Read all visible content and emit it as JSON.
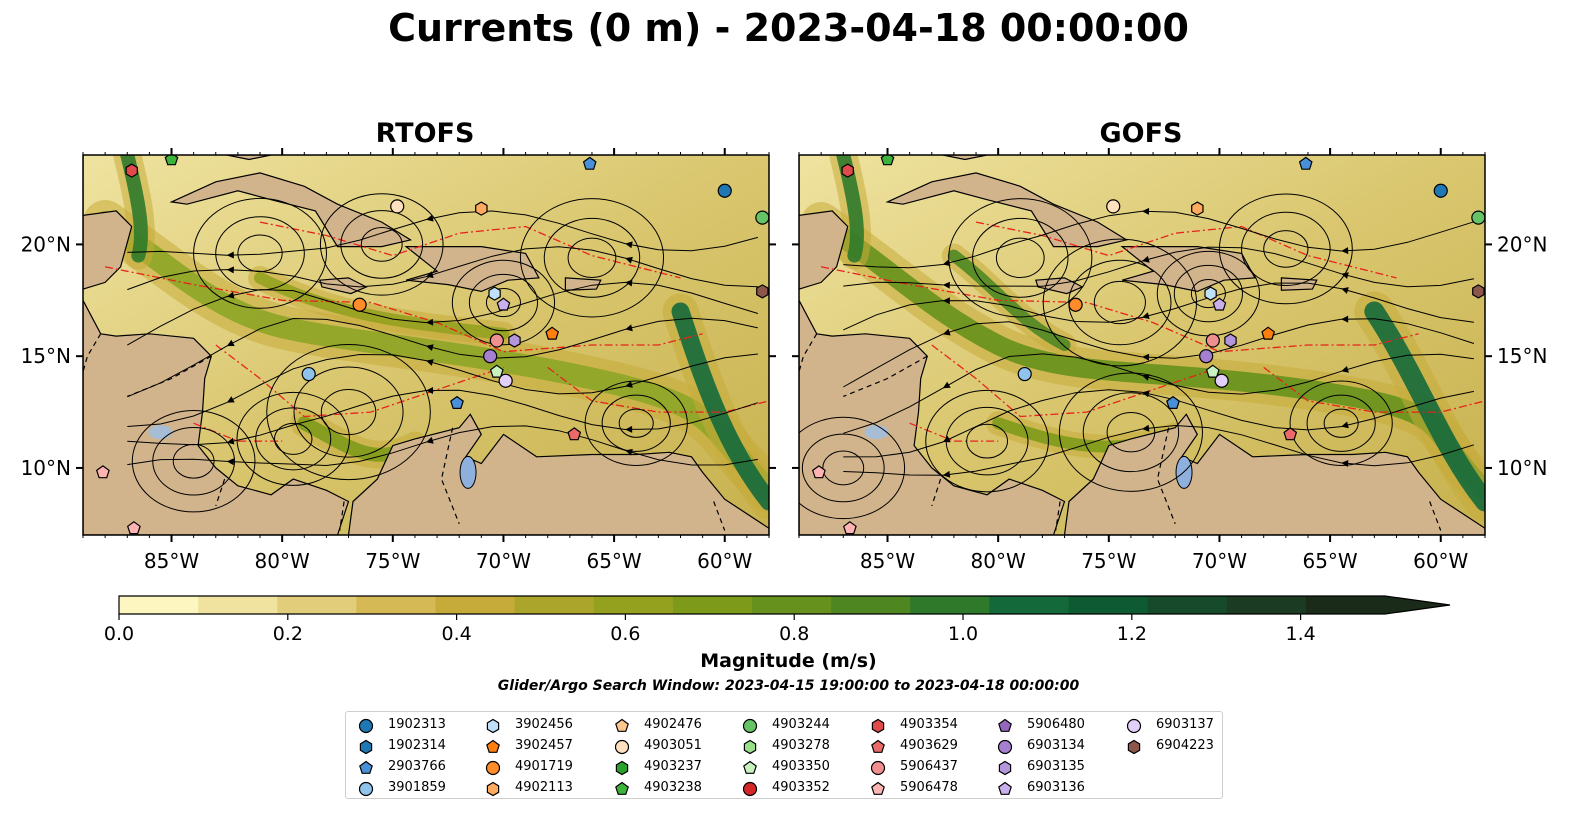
{
  "title": "Currents (0 m) - 2023-04-18 00:00:00",
  "panels": [
    {
      "id": "rtofs",
      "title": "RTOFS"
    },
    {
      "id": "gofs",
      "title": "GOFS"
    }
  ],
  "map_axes": {
    "lon_ticks": [
      "85°W",
      "80°W",
      "75°W",
      "70°W",
      "65°W",
      "60°W"
    ],
    "lat_ticks": [
      "20°N",
      "15°N",
      "10°N"
    ],
    "lon_range": [
      -89,
      -58
    ],
    "lat_range": [
      7,
      24
    ]
  },
  "colorbar": {
    "label": "Magnitude (m/s)",
    "ticks": [
      "0.0",
      "0.2",
      "0.4",
      "0.6",
      "0.8",
      "1.0",
      "1.2",
      "1.4"
    ],
    "range": [
      0,
      1.5
    ],
    "extend": "max",
    "colors": [
      "#fdf6c0",
      "#f0e3a0",
      "#e2cd7a",
      "#d4b955",
      "#c6ab3a",
      "#aca52b",
      "#94a11f",
      "#7e9a1a",
      "#66911c",
      "#4e8722",
      "#2f7a2a",
      "#14693b",
      "#0d5a33",
      "#174a2a",
      "#1c3b23",
      "#1b2b1a"
    ]
  },
  "search_window": "Glider/Argo Search Window: 2023-04-15 19:00:00 to 2023-04-18 00:00:00",
  "legend": [
    {
      "id": "1902313",
      "marker": "circle",
      "color": "#1f77b4"
    },
    {
      "id": "1902314",
      "marker": "hexagon",
      "color": "#1f77b4"
    },
    {
      "id": "2903766",
      "marker": "pentagon",
      "color": "#4a90d9"
    },
    {
      "id": "3901859",
      "marker": "circle",
      "color": "#8fc3ec"
    },
    {
      "id": "3902456",
      "marker": "hexagon",
      "color": "#bfe0f7"
    },
    {
      "id": "3902457",
      "marker": "pentagon",
      "color": "#ff7f0e"
    },
    {
      "id": "4901719",
      "marker": "circle",
      "color": "#ff8c2a"
    },
    {
      "id": "4902113",
      "marker": "hexagon",
      "color": "#ffaa5e"
    },
    {
      "id": "4902476",
      "marker": "pentagon",
      "color": "#ffc78f"
    },
    {
      "id": "4903051",
      "marker": "circle",
      "color": "#ffe0bf"
    },
    {
      "id": "4903237",
      "marker": "hexagon",
      "color": "#2ca02c"
    },
    {
      "id": "4903238",
      "marker": "pentagon",
      "color": "#3cb43c"
    },
    {
      "id": "4903244",
      "marker": "circle",
      "color": "#66c466"
    },
    {
      "id": "4903278",
      "marker": "hexagon",
      "color": "#98df8a"
    },
    {
      "id": "4903350",
      "marker": "pentagon",
      "color": "#c7f2c0"
    },
    {
      "id": "4903352",
      "marker": "circle",
      "color": "#d62728"
    },
    {
      "id": "4903354",
      "marker": "hexagon",
      "color": "#e04a4a"
    },
    {
      "id": "4903629",
      "marker": "pentagon",
      "color": "#ea6a6a"
    },
    {
      "id": "5906437",
      "marker": "circle",
      "color": "#f08f8f"
    },
    {
      "id": "5906478",
      "marker": "pentagon",
      "color": "#ffb3b3"
    },
    {
      "id": "5906480",
      "marker": "pentagon",
      "color": "#9467bd"
    },
    {
      "id": "6903134",
      "marker": "circle",
      "color": "#a57fd0"
    },
    {
      "id": "6903135",
      "marker": "hexagon",
      "color": "#b496dc"
    },
    {
      "id": "6903136",
      "marker": "pentagon",
      "color": "#c9b0ec"
    },
    {
      "id": "6903137",
      "marker": "circle",
      "color": "#e2d0fb"
    },
    {
      "id": "6904223",
      "marker": "hexagon",
      "color": "#8c564b"
    }
  ],
  "floats_rtofs": [
    {
      "id": "4903354",
      "lon": -86.8,
      "lat": 23.3
    },
    {
      "id": "4903238",
      "lon": -85,
      "lat": 23.8
    },
    {
      "id": "2903766",
      "lon": -66.1,
      "lat": 23.6
    },
    {
      "id": "1902313",
      "lon": -60.0,
      "lat": 22.4
    },
    {
      "id": "4903244",
      "lon": -58.3,
      "lat": 21.2
    },
    {
      "id": "4903051",
      "lon": -74.8,
      "lat": 21.7
    },
    {
      "id": "4902113",
      "lon": -71.0,
      "lat": 21.6
    },
    {
      "id": "6904223",
      "lon": -58.3,
      "lat": 17.9
    },
    {
      "id": "3902456",
      "lon": -70.4,
      "lat": 17.8
    },
    {
      "id": "6903136",
      "lon": -70.0,
      "lat": 17.3
    },
    {
      "id": "4901719",
      "lon": -76.5,
      "lat": 17.3
    },
    {
      "id": "3902457",
      "lon": -67.8,
      "lat": 16.0
    },
    {
      "id": "5906437",
      "lon": -70.3,
      "lat": 15.7
    },
    {
      "id": "6903135",
      "lon": -69.5,
      "lat": 15.7
    },
    {
      "id": "6903134",
      "lon": -70.6,
      "lat": 15.0
    },
    {
      "id": "4903350",
      "lon": -70.3,
      "lat": 14.3
    },
    {
      "id": "6903137",
      "lon": -69.9,
      "lat": 13.9
    },
    {
      "id": "3901859",
      "lon": -78.8,
      "lat": 14.2
    },
    {
      "id": "2903766",
      "lon": -72.1,
      "lat": 12.9
    },
    {
      "id": "4903629",
      "lon": -66.8,
      "lat": 11.5
    },
    {
      "id": "5906478",
      "lon": -88.1,
      "lat": 9.8
    },
    {
      "id": "5906478",
      "lon": -86.7,
      "lat": 7.3
    }
  ],
  "floats_gofs": [
    {
      "id": "4903354",
      "lon": -86.8,
      "lat": 23.3
    },
    {
      "id": "4903238",
      "lon": -85,
      "lat": 23.8
    },
    {
      "id": "2903766",
      "lon": -66.1,
      "lat": 23.6
    },
    {
      "id": "1902313",
      "lon": -60.0,
      "lat": 22.4
    },
    {
      "id": "4903244",
      "lon": -58.3,
      "lat": 21.2
    },
    {
      "id": "4903051",
      "lon": -74.8,
      "lat": 21.7
    },
    {
      "id": "4902113",
      "lon": -71.0,
      "lat": 21.6
    },
    {
      "id": "6904223",
      "lon": -58.3,
      "lat": 17.9
    },
    {
      "id": "3902456",
      "lon": -70.4,
      "lat": 17.8
    },
    {
      "id": "6903136",
      "lon": -70.0,
      "lat": 17.3
    },
    {
      "id": "4901719",
      "lon": -76.5,
      "lat": 17.3
    },
    {
      "id": "3902457",
      "lon": -67.8,
      "lat": 16.0
    },
    {
      "id": "5906437",
      "lon": -70.3,
      "lat": 15.7
    },
    {
      "id": "6903135",
      "lon": -69.5,
      "lat": 15.7
    },
    {
      "id": "6903134",
      "lon": -70.6,
      "lat": 15.0
    },
    {
      "id": "4903350",
      "lon": -70.3,
      "lat": 14.3
    },
    {
      "id": "6903137",
      "lon": -69.9,
      "lat": 13.9
    },
    {
      "id": "3901859",
      "lon": -78.8,
      "lat": 14.2
    },
    {
      "id": "2903766",
      "lon": -72.1,
      "lat": 12.9
    },
    {
      "id": "4903629",
      "lon": -66.8,
      "lat": 11.5
    },
    {
      "id": "5906478",
      "lon": -88.1,
      "lat": 9.8
    },
    {
      "id": "5906478",
      "lon": -86.7,
      "lat": 7.3
    }
  ]
}
